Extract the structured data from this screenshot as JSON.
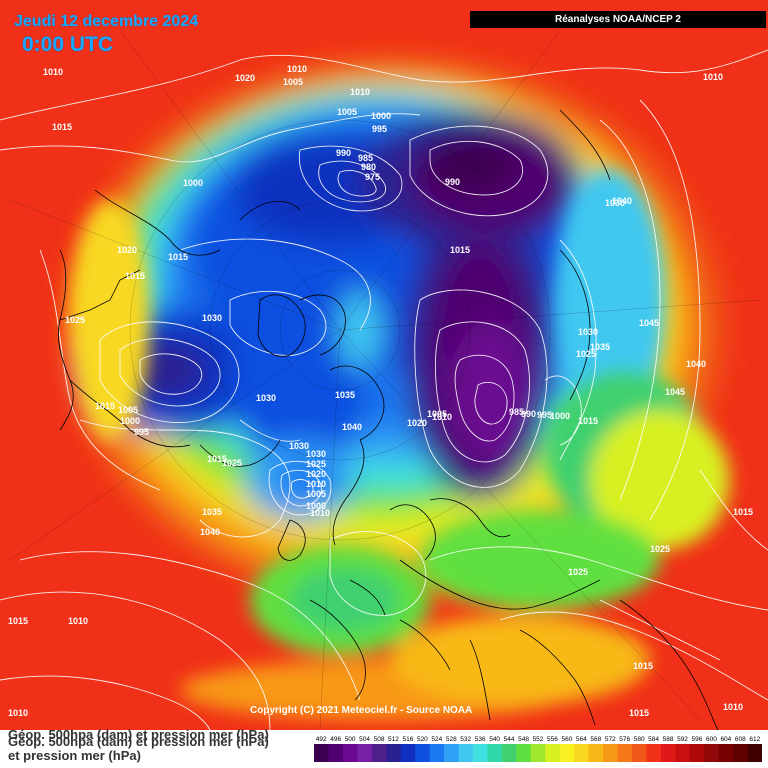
{
  "header": {
    "date": "Jeudi 12 decembre 2024",
    "time": "0:00 UTC",
    "source": "Réanalyses NOAA/NCEP 2"
  },
  "copyright": "Copyright (C) 2021 Meteociel.fr - Source NOAA",
  "legend": {
    "line1": "Géop. 500hpa (dam) et pression mer (hPa)",
    "line2": "Géop. 500hpa (dam) et pression mer (hPa)",
    "line3": "et pression mer (hPa)",
    "scale_values": [
      "492",
      "496",
      "500",
      "504",
      "508",
      "512",
      "516",
      "520",
      "524",
      "528",
      "532",
      "536",
      "540",
      "544",
      "548",
      "552",
      "556",
      "560",
      "564",
      "568",
      "572",
      "576",
      "580",
      "584",
      "588",
      "592",
      "596",
      "600",
      "604",
      "608",
      "612"
    ],
    "scale_colors": [
      "#3c0050",
      "#500070",
      "#6a0890",
      "#7a20a8",
      "#50208a",
      "#2a2090",
      "#1030c0",
      "#1050e0",
      "#1a78f0",
      "#30a0f5",
      "#40c8f0",
      "#40e0e0",
      "#30d8a8",
      "#40d070",
      "#60e040",
      "#a0e830",
      "#d8f020",
      "#f8f020",
      "#f8d820",
      "#f8b818",
      "#f89818",
      "#f87818",
      "#f05818",
      "#f03018",
      "#e01818",
      "#c81010",
      "#b00808",
      "#900808",
      "#780000",
      "#600000",
      "#400000"
    ]
  },
  "pressure_labels": [
    {
      "text": "1010"
    },
    {
      "text": "1020"
    },
    {
      "text": "1010"
    },
    {
      "text": "1005"
    },
    {
      "text": "1010"
    },
    {
      "text": "1010"
    },
    {
      "text": "1015"
    },
    {
      "text": "1005"
    },
    {
      "text": "1000"
    },
    {
      "text": "995"
    },
    {
      "text": "990"
    },
    {
      "text": "985"
    },
    {
      "text": "980"
    },
    {
      "text": "975"
    },
    {
      "text": "990"
    },
    {
      "text": "1000"
    },
    {
      "text": "1030"
    },
    {
      "text": "1020"
    },
    {
      "text": "1015"
    },
    {
      "text": "1015"
    },
    {
      "text": "1015"
    },
    {
      "text": "1025"
    },
    {
      "text": "1030"
    },
    {
      "text": "1040"
    },
    {
      "text": "1030"
    },
    {
      "text": "1045"
    },
    {
      "text": "1035"
    },
    {
      "text": "1025"
    },
    {
      "text": "1040"
    },
    {
      "text": "1045"
    },
    {
      "text": "1015"
    },
    {
      "text": "1005"
    },
    {
      "text": "1000"
    },
    {
      "text": "995"
    },
    {
      "text": "1030"
    },
    {
      "text": "1035"
    },
    {
      "text": "1040"
    },
    {
      "text": "1005"
    },
    {
      "text": "1020"
    },
    {
      "text": "1010"
    },
    {
      "text": "985"
    },
    {
      "text": "990"
    },
    {
      "text": "995"
    },
    {
      "text": "1000"
    },
    {
      "text": "1015"
    },
    {
      "text": "1015"
    },
    {
      "text": "1025"
    },
    {
      "text": "1030"
    },
    {
      "text": "1030"
    },
    {
      "text": "1025"
    },
    {
      "text": "1020"
    },
    {
      "text": "1010"
    },
    {
      "text": "1005"
    },
    {
      "text": "1000"
    },
    {
      "text": "1010"
    },
    {
      "text": "1035"
    },
    {
      "text": "1040"
    },
    {
      "text": "1015"
    },
    {
      "text": "1025"
    },
    {
      "text": "1025"
    },
    {
      "text": "1015"
    },
    {
      "text": "1010"
    },
    {
      "text": "1015"
    },
    {
      "text": "1010"
    },
    {
      "text": "1015"
    },
    {
      "text": "1010"
    }
  ]
}
